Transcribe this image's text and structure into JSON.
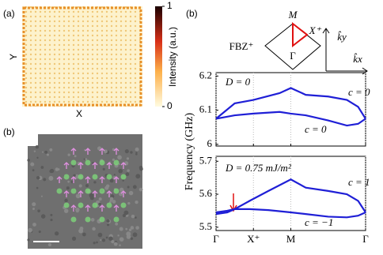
{
  "panel_a": {
    "label": "(a)",
    "x_label": "X",
    "y_label": "Y",
    "colorbar": {
      "title": "Intensity (a.u.)",
      "lim": [
        0,
        1
      ],
      "ticks": [
        0,
        1
      ]
    }
  },
  "panel_b_image": {
    "label": "(b)"
  },
  "panel_b": {
    "label": "(b)",
    "bz_label": "FBZ⁺",
    "point_m": "M",
    "point_x": "X⁺",
    "point_gamma": "Γ",
    "k_y": "k̂y",
    "k_x": "k̂x"
  },
  "chart_data": [
    {
      "type": "line",
      "annotation": "D = 0",
      "ylabel": "Frequency (GHz)",
      "x": [
        0,
        0.25,
        0.5,
        0.85,
        1,
        1.2,
        1.5,
        1.75,
        1.9,
        2
      ],
      "series": [
        {
          "name": "c = 0",
          "color": "#1f1fd6",
          "values": [
            6.075,
            6.12,
            6.13,
            6.15,
            6.165,
            6.145,
            6.14,
            6.13,
            6.11,
            6.075
          ]
        },
        {
          "name": "c = 0",
          "color": "#1f1fd6",
          "values": [
            6.075,
            6.085,
            6.09,
            6.095,
            6.09,
            6.085,
            6.07,
            6.055,
            6.06,
            6.075
          ]
        }
      ],
      "ylim": [
        5.995,
        6.21
      ],
      "yticks": [
        6,
        6.1,
        6.2
      ],
      "xlim": [
        0,
        2
      ]
    },
    {
      "type": "line",
      "annotation": "D = 0.75 mJ/m²",
      "x": [
        0,
        0.15,
        0.25,
        0.45,
        0.7,
        1,
        1.2,
        1.5,
        1.75,
        1.9,
        2
      ],
      "series": [
        {
          "name": "c = 1",
          "color": "#1f1fd6",
          "values": [
            5.545,
            5.55,
            5.555,
            5.58,
            5.61,
            5.645,
            5.62,
            5.61,
            5.6,
            5.58,
            5.545
          ]
        },
        {
          "name": "c = −1",
          "color": "#1f1fd6",
          "values": [
            5.54,
            5.545,
            5.555,
            5.555,
            5.552,
            5.545,
            5.54,
            5.532,
            5.53,
            5.535,
            5.545
          ]
        }
      ],
      "ylim": [
        5.49,
        5.715
      ],
      "yticks": [
        5.5,
        5.6,
        5.7
      ],
      "xlim": [
        0,
        2
      ],
      "xticks": [
        {
          "value": 0,
          "label": "Γ"
        },
        {
          "value": 0.5,
          "label": "X⁺"
        },
        {
          "value": 1,
          "label": "M"
        },
        {
          "value": 2,
          "label": "Γ"
        }
      ]
    }
  ]
}
